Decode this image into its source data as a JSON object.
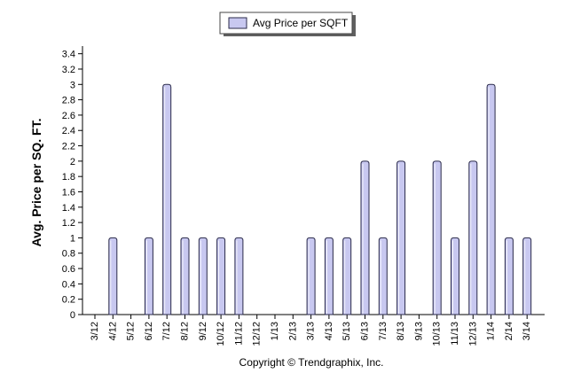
{
  "chart_data": {
    "type": "bar",
    "legend": {
      "label": "Avg Price per SQFT",
      "placement": "top-center"
    },
    "ylabel": "Avg. Price per SQ. FT.",
    "xlabel": "",
    "ylim": [
      0,
      3.5
    ],
    "yticks": [
      "0",
      "0.2",
      "0.4",
      "0.6",
      "0.8",
      "1",
      "1.2",
      "1.4",
      "1.6",
      "1.8",
      "2",
      "2.2",
      "2.4",
      "2.6",
      "2.8",
      "3",
      "3.2",
      "3.4"
    ],
    "categories": [
      "3/12",
      "4/12",
      "5/12",
      "6/12",
      "7/12",
      "8/12",
      "9/12",
      "10/12",
      "11/12",
      "12/12",
      "1/13",
      "2/13",
      "3/13",
      "4/13",
      "5/13",
      "6/13",
      "7/13",
      "8/13",
      "9/13",
      "10/13",
      "11/13",
      "12/13",
      "1/14",
      "2/14",
      "3/14"
    ],
    "series": [
      {
        "name": "Avg Price per SQFT",
        "values": [
          0,
          1,
          0,
          1,
          3,
          1,
          1,
          1,
          1,
          0,
          0,
          0,
          1,
          1,
          1,
          2,
          1,
          2,
          0,
          2,
          1,
          2,
          3,
          1,
          1
        ]
      }
    ],
    "grid": false,
    "colors": {
      "bar_fill": "#c8c8f0",
      "bar_stroke": "#2a2a4a",
      "axis": "#000000"
    }
  },
  "footer": {
    "copyright": "Copyright © Trendgraphix, Inc."
  }
}
